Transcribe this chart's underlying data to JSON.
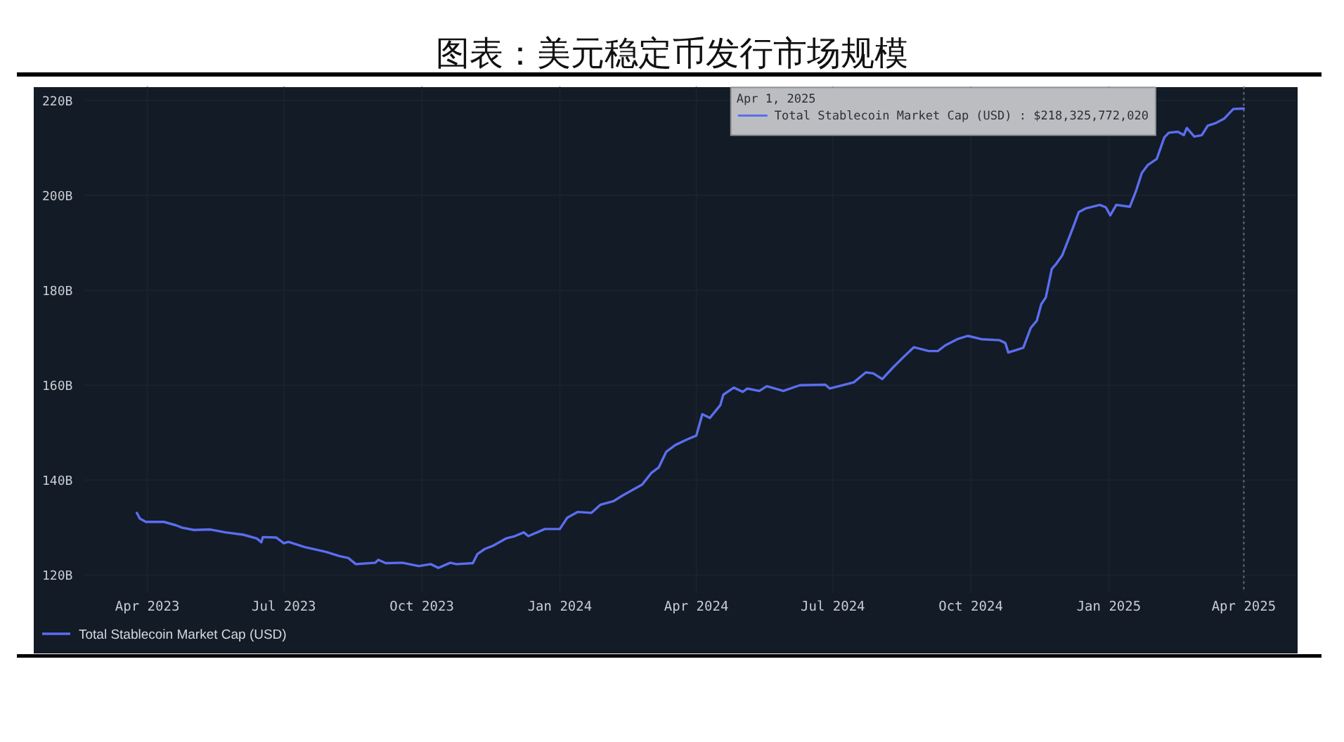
{
  "chart_data": {
    "type": "line",
    "title": "图表：美元稳定币发行市场规模",
    "x": [
      "2023-03-25",
      "2023-03-27",
      "2023-03-31",
      "2023-04-12",
      "2023-04-20",
      "2023-04-24",
      "2023-05-02",
      "2023-05-13",
      "2023-05-23",
      "2023-06-04",
      "2023-06-13",
      "2023-06-16",
      "2023-06-17",
      "2023-06-26",
      "2023-07-01",
      "2023-07-04",
      "2023-07-15",
      "2023-07-29",
      "2023-08-07",
      "2023-08-13",
      "2023-08-18",
      "2023-08-31",
      "2023-09-02",
      "2023-09-07",
      "2023-09-18",
      "2023-09-29",
      "2023-10-07",
      "2023-10-12",
      "2023-10-20",
      "2023-10-24",
      "2023-11-04",
      "2023-11-07",
      "2023-11-12",
      "2023-11-17",
      "2023-11-26",
      "2023-12-02",
      "2023-12-08",
      "2023-12-11",
      "2023-12-22",
      "2024-01-01",
      "2024-01-06",
      "2024-01-13",
      "2024-01-22",
      "2024-01-28",
      "2024-02-06",
      "2024-02-12",
      "2024-02-25",
      "2024-03-02",
      "2024-03-07",
      "2024-03-12",
      "2024-03-18",
      "2024-03-26",
      "2024-04-01",
      "2024-04-05",
      "2024-04-10",
      "2024-04-17",
      "2024-04-19",
      "2024-04-26",
      "2024-05-02",
      "2024-05-05",
      "2024-05-13",
      "2024-05-18",
      "2024-05-29",
      "2024-06-09",
      "2024-06-26",
      "2024-06-29",
      "2024-07-15",
      "2024-07-23",
      "2024-07-28",
      "2024-08-03",
      "2024-08-10",
      "2024-08-17",
      "2024-08-24",
      "2024-09-03",
      "2024-09-09",
      "2024-09-14",
      "2024-09-22",
      "2024-09-29",
      "2024-10-08",
      "2024-10-20",
      "2024-10-24",
      "2024-10-26",
      "2024-10-31",
      "2024-11-05",
      "2024-11-10",
      "2024-11-14",
      "2024-11-17",
      "2024-11-20",
      "2024-11-24",
      "2024-11-27",
      "2024-12-01",
      "2024-12-08",
      "2024-12-12",
      "2024-12-17",
      "2024-12-26",
      "2024-12-30",
      "2025-01-02",
      "2025-01-06",
      "2025-01-15",
      "2025-01-19",
      "2025-01-23",
      "2025-01-27",
      "2025-02-02",
      "2025-02-07",
      "2025-02-10",
      "2025-02-16",
      "2025-02-20",
      "2025-02-22",
      "2025-02-27",
      "2025-03-04",
      "2025-03-08",
      "2025-03-13",
      "2025-03-19",
      "2025-03-25",
      "2025-04-01"
    ],
    "series": [
      {
        "name": "Total Stablecoin Market Cap (USD)",
        "color": "#5b6ef0",
        "values": [
          133.1,
          131.9,
          131.2,
          131.2,
          130.5,
          130.0,
          129.5,
          129.6,
          129.0,
          128.5,
          127.7,
          126.9,
          128.0,
          127.9,
          126.7,
          127.0,
          125.9,
          124.9,
          124.0,
          123.6,
          122.3,
          122.6,
          123.2,
          122.5,
          122.6,
          121.9,
          122.3,
          121.5,
          122.6,
          122.3,
          122.5,
          124.4,
          125.5,
          126.1,
          127.7,
          128.2,
          129.0,
          128.2,
          129.7,
          129.7,
          132.1,
          133.3,
          133.1,
          134.8,
          135.6,
          136.8,
          139.1,
          141.5,
          142.7,
          146.0,
          147.4,
          148.6,
          149.4,
          153.9,
          153.1,
          155.8,
          158.0,
          159.5,
          158.6,
          159.3,
          158.8,
          159.8,
          158.8,
          160.0,
          160.1,
          159.3,
          160.6,
          162.7,
          162.5,
          161.3,
          163.7,
          165.9,
          168.0,
          167.2,
          167.2,
          168.4,
          169.7,
          170.4,
          169.7,
          169.5,
          168.9,
          166.9,
          167.4,
          167.9,
          172.1,
          173.6,
          177.1,
          178.5,
          184.5,
          185.6,
          187.4,
          193.1,
          196.5,
          197.3,
          198.0,
          197.5,
          195.8,
          198.0,
          197.6,
          200.8,
          204.7,
          206.4,
          207.7,
          212.2,
          213.2,
          213.4,
          212.7,
          214.2,
          212.4,
          212.7,
          214.7,
          215.2,
          216.2,
          218.2,
          218.3
        ]
      }
    ],
    "xlim": [
      "2023-02-18",
      "2025-05-05"
    ],
    "xticks": [
      {
        "value": "2023-04-01",
        "label": "Apr 2023"
      },
      {
        "value": "2023-07-01",
        "label": "Jul 2023"
      },
      {
        "value": "2023-10-01",
        "label": "Oct 2023"
      },
      {
        "value": "2024-01-01",
        "label": "Jan 2024"
      },
      {
        "value": "2024-04-01",
        "label": "Apr 2024"
      },
      {
        "value": "2024-07-01",
        "label": "Jul 2024"
      },
      {
        "value": "2024-10-01",
        "label": "Oct 2024"
      },
      {
        "value": "2025-01-01",
        "label": "Jan 2025"
      },
      {
        "value": "2025-04-01",
        "label": "Apr 2025"
      }
    ],
    "ylim": [
      116.3,
      222.9
    ],
    "yticks": [
      {
        "value": 120,
        "label": "120B"
      },
      {
        "value": 140,
        "label": "140B"
      },
      {
        "value": 160,
        "label": "160B"
      },
      {
        "value": 180,
        "label": "180B"
      },
      {
        "value": 200,
        "label": "200B"
      },
      {
        "value": 220,
        "label": "220B"
      }
    ],
    "grid": true,
    "legend": "bottom left",
    "ref_lines": [
      {
        "axis": "x",
        "value": "2025-04-01",
        "line_style": "dotted",
        "color": "#6b7380"
      }
    ],
    "annotations": [
      "Apr 1, 2025",
      "Total Stablecoin Market Cap (USD) : $218,325,772,020"
    ]
  }
}
